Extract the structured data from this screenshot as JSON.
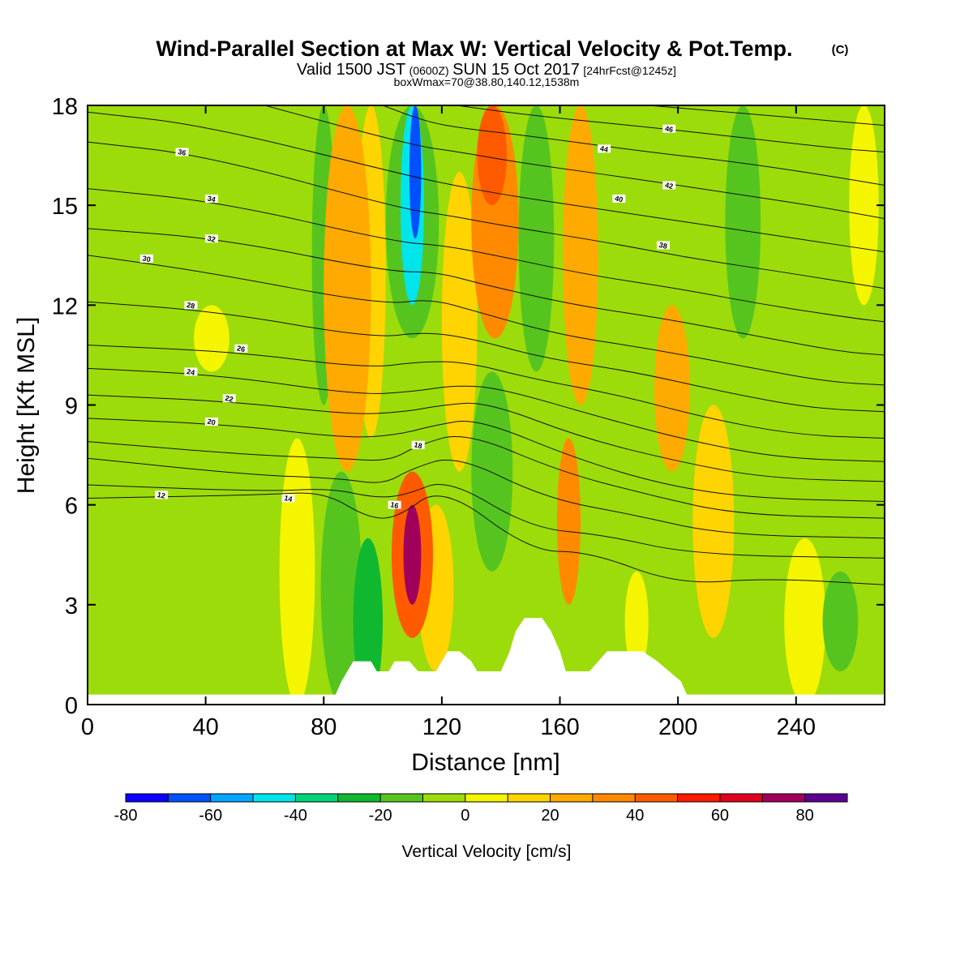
{
  "header": {
    "title_main": "Wind-Parallel Section at Max W: Vertical Velocity & Pot.Temp.",
    "title_mark": "(C)",
    "sub_a": "Valid 1500 JST",
    "sub_b": "(0600Z)",
    "sub_c": "SUN 15 Oct 2017",
    "sub_d": "[24hrFcst@1245z]",
    "sub_e": "boxWmax=70@38.80,140.12,1538m"
  },
  "chart_data": {
    "type": "heatmap",
    "title": "Wind-Parallel Section at Max W: Vertical Velocity & Pot.Temp.",
    "xlabel": "Distance [nm]",
    "ylabel": "Height [Kft MSL]",
    "xlim": [
      0,
      270
    ],
    "ylim": [
      0,
      18
    ],
    "x_ticks": [
      "0",
      "40",
      "80",
      "120",
      "160",
      "200",
      "240"
    ],
    "y_ticks": [
      "0",
      "3",
      "6",
      "9",
      "12",
      "15",
      "18"
    ],
    "colorbar": {
      "label": "Vertical Velocity [cm/s]",
      "range": [
        -80,
        90
      ],
      "ticks": [
        "-80",
        "-60",
        "-40",
        "-20",
        "0",
        "20",
        "40",
        "60",
        "80"
      ],
      "colors": [
        "#0b00ff",
        "#0050ff",
        "#00a6ff",
        "#00e5ea",
        "#00d47a",
        "#10b830",
        "#55c41f",
        "#9cdc0a",
        "#f5f500",
        "#ffd400",
        "#ffaa00",
        "#ff8a00",
        "#ff5a00",
        "#ff1a00",
        "#e0001e",
        "#a0005a",
        "#5c0090"
      ]
    },
    "w_bands": [
      {
        "x": 71,
        "half_width": 6,
        "z0": 0,
        "z1": 8,
        "value": 8
      },
      {
        "x": 86,
        "half_width": 7,
        "z0": 0,
        "z1": 7,
        "value": -15
      },
      {
        "x": 95,
        "half_width": 5,
        "z0": 0,
        "z1": 5,
        "value": -25
      },
      {
        "x": 80,
        "half_width": 4,
        "z0": 9,
        "z1": 18,
        "value": -12
      },
      {
        "x": 88,
        "half_width": 8,
        "z0": 7,
        "z1": 18,
        "value": 25
      },
      {
        "x": 96,
        "half_width": 5,
        "z0": 8,
        "z1": 18,
        "value": 12
      },
      {
        "x": 110,
        "half_width": 7,
        "z0": 2,
        "z1": 7,
        "value": 45
      },
      {
        "x": 110,
        "half_width": 3,
        "z0": 3,
        "z1": 6,
        "value": 70
      },
      {
        "x": 118,
        "half_width": 6,
        "z0": 1,
        "z1": 6,
        "value": 15
      },
      {
        "x": 110,
        "half_width": 9,
        "z0": 11,
        "z1": 18,
        "value": -20
      },
      {
        "x": 110,
        "half_width": 4,
        "z0": 12,
        "z1": 18,
        "value": -45
      },
      {
        "x": 111,
        "half_width": 2,
        "z0": 14,
        "z1": 18,
        "value": -70
      },
      {
        "x": 126,
        "half_width": 6,
        "z0": 7,
        "z1": 16,
        "value": 15
      },
      {
        "x": 137,
        "half_width": 7,
        "z0": 4,
        "z1": 10,
        "value": -15
      },
      {
        "x": 138,
        "half_width": 8,
        "z0": 11,
        "z1": 18,
        "value": 30
      },
      {
        "x": 137,
        "half_width": 5,
        "z0": 15,
        "z1": 18,
        "value": 48
      },
      {
        "x": 152,
        "half_width": 6,
        "z0": 10,
        "z1": 18,
        "value": -15
      },
      {
        "x": 163,
        "half_width": 4,
        "z0": 3,
        "z1": 8,
        "value": 32
      },
      {
        "x": 167,
        "half_width": 6,
        "z0": 9,
        "z1": 18,
        "value": 20
      },
      {
        "x": 187,
        "half_width": 5,
        "z0": 8,
        "z1": 13,
        "value": -10
      },
      {
        "x": 198,
        "half_width": 6,
        "z0": 7,
        "z1": 12,
        "value": 22
      },
      {
        "x": 212,
        "half_width": 7,
        "z0": 2,
        "z1": 9,
        "value": 10
      },
      {
        "x": 222,
        "half_width": 6,
        "z0": 11,
        "z1": 18,
        "value": -15
      },
      {
        "x": 243,
        "half_width": 7,
        "z0": 0,
        "z1": 5,
        "value": 8
      },
      {
        "x": 255,
        "half_width": 6,
        "z0": 1,
        "z1": 4,
        "value": -18
      },
      {
        "x": 42,
        "half_width": 6,
        "z0": 10,
        "z1": 12,
        "value": 5
      },
      {
        "x": 186,
        "half_width": 4,
        "z0": 1,
        "z1": 4,
        "value": 6
      },
      {
        "x": 263,
        "half_width": 5,
        "z0": 12,
        "z1": 18,
        "value": 8
      }
    ],
    "terrain": [
      [
        0,
        0.3
      ],
      [
        84,
        0.3
      ],
      [
        86,
        0.7
      ],
      [
        88,
        1.0
      ],
      [
        90,
        1.3
      ],
      [
        96,
        1.3
      ],
      [
        98,
        1.0
      ],
      [
        102,
        1.0
      ],
      [
        104,
        1.3
      ],
      [
        109,
        1.3
      ],
      [
        112,
        1.0
      ],
      [
        118,
        1.0
      ],
      [
        120,
        1.3
      ],
      [
        122,
        1.6
      ],
      [
        126,
        1.6
      ],
      [
        130,
        1.3
      ],
      [
        132,
        1.0
      ],
      [
        140,
        1.0
      ],
      [
        143,
        1.6
      ],
      [
        145,
        2.2
      ],
      [
        148,
        2.6
      ],
      [
        154,
        2.6
      ],
      [
        157,
        2.2
      ],
      [
        160,
        1.6
      ],
      [
        162,
        1.0
      ],
      [
        170,
        1.0
      ],
      [
        173,
        1.3
      ],
      [
        176,
        1.6
      ],
      [
        188,
        1.6
      ],
      [
        193,
        1.3
      ],
      [
        197,
        1.0
      ],
      [
        201,
        0.7
      ],
      [
        203,
        0.3
      ],
      [
        270,
        0.3
      ]
    ],
    "theta_contours": [
      {
        "label": "12",
        "label_at": [
          25,
          6.3
        ],
        "points": [
          [
            0,
            6.2
          ],
          [
            60,
            6.3
          ],
          [
            80,
            6.4
          ],
          [
            95,
            5.6
          ],
          [
            105,
            5.6
          ],
          [
            120,
            6.6
          ],
          [
            150,
            4.6
          ],
          [
            170,
            4.6
          ],
          [
            200,
            3.6
          ],
          [
            230,
            3.8
          ],
          [
            270,
            3.6
          ]
        ]
      },
      {
        "label": "14",
        "label_at": [
          68,
          6.2
        ],
        "points": [
          [
            0,
            6.6
          ],
          [
            60,
            6.4
          ],
          [
            82,
            6.5
          ],
          [
            98,
            6.2
          ],
          [
            108,
            6.3
          ],
          [
            122,
            6.8
          ],
          [
            150,
            5.3
          ],
          [
            175,
            5.1
          ],
          [
            205,
            4.5
          ],
          [
            270,
            4.4
          ]
        ]
      },
      {
        "label": "16",
        "label_at": [
          104,
          6.0
        ],
        "points": [
          [
            0,
            7.4
          ],
          [
            55,
            6.9
          ],
          [
            85,
            6.8
          ],
          [
            100,
            6.6
          ],
          [
            110,
            7.1
          ],
          [
            125,
            7.5
          ],
          [
            155,
            6.2
          ],
          [
            185,
            5.7
          ],
          [
            215,
            5.1
          ],
          [
            270,
            5.0
          ]
        ]
      },
      {
        "label": "18",
        "label_at": [
          112,
          7.8
        ],
        "points": [
          [
            0,
            7.9
          ],
          [
            55,
            7.5
          ],
          [
            85,
            7.4
          ],
          [
            102,
            7.3
          ],
          [
            112,
            7.8
          ],
          [
            128,
            8.2
          ],
          [
            160,
            7.0
          ],
          [
            190,
            6.3
          ],
          [
            220,
            5.7
          ],
          [
            270,
            5.6
          ]
        ]
      },
      {
        "label": "20",
        "label_at": [
          42,
          8.5
        ],
        "points": [
          [
            0,
            8.6
          ],
          [
            50,
            8.4
          ],
          [
            88,
            8.0
          ],
          [
            105,
            8.1
          ],
          [
            118,
            8.4
          ],
          [
            132,
            8.6
          ],
          [
            165,
            7.4
          ],
          [
            195,
            6.6
          ],
          [
            225,
            6.2
          ],
          [
            270,
            6.1
          ]
        ]
      },
      {
        "label": "22",
        "label_at": [
          48,
          9.2
        ],
        "points": [
          [
            0,
            9.3
          ],
          [
            50,
            9.1
          ],
          [
            90,
            8.7
          ],
          [
            108,
            8.8
          ],
          [
            120,
            9.0
          ],
          [
            135,
            9.1
          ],
          [
            168,
            8.0
          ],
          [
            200,
            7.3
          ],
          [
            230,
            6.8
          ],
          [
            270,
            6.7
          ]
        ]
      },
      {
        "label": "24",
        "label_at": [
          35,
          10.0
        ],
        "points": [
          [
            0,
            10.1
          ],
          [
            45,
            9.9
          ],
          [
            92,
            9.3
          ],
          [
            110,
            9.4
          ],
          [
            125,
            9.6
          ],
          [
            140,
            9.5
          ],
          [
            175,
            8.6
          ],
          [
            205,
            7.9
          ],
          [
            235,
            7.4
          ],
          [
            270,
            7.3
          ]
        ]
      },
      {
        "label": "26",
        "label_at": [
          52,
          10.7
        ],
        "points": [
          [
            0,
            10.8
          ],
          [
            50,
            10.6
          ],
          [
            95,
            10.1
          ],
          [
            112,
            10.3
          ],
          [
            128,
            10.3
          ],
          [
            150,
            9.8
          ],
          [
            180,
            9.3
          ],
          [
            210,
            8.6
          ],
          [
            240,
            8.1
          ],
          [
            270,
            8.0
          ]
        ]
      },
      {
        "label": "28",
        "label_at": [
          35,
          12.0
        ],
        "points": [
          [
            0,
            12.1
          ],
          [
            45,
            11.8
          ],
          [
            97,
            11.0
          ],
          [
            114,
            11.2
          ],
          [
            130,
            11.0
          ],
          [
            155,
            10.4
          ],
          [
            185,
            10.0
          ],
          [
            215,
            9.4
          ],
          [
            245,
            8.9
          ],
          [
            270,
            8.8
          ]
        ]
      },
      {
        "label": "30",
        "label_at": [
          20,
          13.4
        ],
        "points": [
          [
            0,
            13.5
          ],
          [
            40,
            13.0
          ],
          [
            100,
            12.0
          ],
          [
            116,
            12.2
          ],
          [
            132,
            11.8
          ],
          [
            160,
            11.1
          ],
          [
            190,
            10.7
          ],
          [
            220,
            10.2
          ],
          [
            250,
            9.7
          ],
          [
            270,
            9.6
          ]
        ]
      },
      {
        "label": "32",
        "label_at": [
          42,
          14.0
        ],
        "points": [
          [
            0,
            14.3
          ],
          [
            45,
            14.0
          ],
          [
            102,
            13.0
          ],
          [
            118,
            13.0
          ],
          [
            135,
            12.6
          ],
          [
            165,
            12.0
          ],
          [
            195,
            11.6
          ],
          [
            225,
            11.1
          ],
          [
            255,
            10.6
          ],
          [
            270,
            10.5
          ]
        ]
      },
      {
        "label": "34",
        "label_at": [
          42,
          15.2
        ],
        "points": [
          [
            0,
            15.5
          ],
          [
            45,
            15.1
          ],
          [
            104,
            13.9
          ],
          [
            120,
            13.8
          ],
          [
            138,
            13.5
          ],
          [
            170,
            12.9
          ],
          [
            200,
            12.5
          ],
          [
            230,
            12.0
          ],
          [
            260,
            11.6
          ],
          [
            270,
            11.5
          ]
        ]
      },
      {
        "label": "36",
        "label_at": [
          32,
          16.6
        ],
        "points": [
          [
            0,
            16.9
          ],
          [
            40,
            16.5
          ],
          [
            106,
            14.9
          ],
          [
            122,
            14.7
          ],
          [
            140,
            14.4
          ],
          [
            175,
            13.9
          ],
          [
            205,
            13.4
          ],
          [
            235,
            13.0
          ],
          [
            270,
            12.5
          ]
        ]
      },
      {
        "label": "38",
        "label_at": [
          195,
          13.8
        ],
        "points": [
          [
            0,
            17.8
          ],
          [
            40,
            17.4
          ],
          [
            108,
            15.9
          ],
          [
            124,
            15.6
          ],
          [
            142,
            15.3
          ],
          [
            180,
            14.8
          ],
          [
            210,
            14.4
          ],
          [
            240,
            14.0
          ],
          [
            270,
            13.6
          ]
        ]
      },
      {
        "label": "40",
        "label_at": [
          180,
          15.2
        ],
        "points": [
          [
            60,
            18.0
          ],
          [
            110,
            16.8
          ],
          [
            126,
            16.6
          ],
          [
            145,
            16.3
          ],
          [
            185,
            15.8
          ],
          [
            215,
            15.4
          ],
          [
            245,
            15.0
          ],
          [
            270,
            14.6
          ]
        ]
      },
      {
        "label": "42",
        "label_at": [
          197,
          15.6
        ],
        "points": [
          [
            100,
            18.0
          ],
          [
            115,
            17.5
          ],
          [
            128,
            17.3
          ],
          [
            148,
            17.1
          ],
          [
            190,
            16.6
          ],
          [
            220,
            16.3
          ],
          [
            250,
            15.9
          ],
          [
            270,
            15.6
          ]
        ]
      },
      {
        "label": "44",
        "label_at": [
          175,
          16.7
        ],
        "points": [
          [
            125,
            18.0
          ],
          [
            150,
            17.7
          ],
          [
            195,
            17.3
          ],
          [
            225,
            17.0
          ],
          [
            255,
            16.7
          ],
          [
            270,
            16.6
          ]
        ]
      },
      {
        "label": "46",
        "label_at": [
          197,
          17.3
        ],
        "points": [
          [
            190,
            18.0
          ],
          [
            230,
            17.7
          ],
          [
            270,
            17.4
          ]
        ]
      }
    ]
  }
}
